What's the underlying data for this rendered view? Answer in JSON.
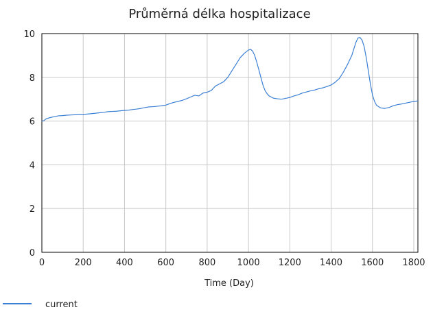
{
  "chart_data": {
    "type": "line",
    "title": "Průměrná délka hospitalizace",
    "xlabel": "Time (Day)",
    "ylabel": "",
    "xlim": [
      0,
      1820
    ],
    "ylim": [
      0,
      10
    ],
    "xticks": [
      0,
      200,
      400,
      600,
      800,
      1000,
      1200,
      1400,
      1600,
      1800
    ],
    "yticks": [
      0,
      2,
      4,
      6,
      8,
      10
    ],
    "grid": true,
    "legend_position": "bottom-left",
    "series": [
      {
        "name": "current",
        "color": "#3a7fd5",
        "x": [
          0,
          10,
          20,
          40,
          60,
          80,
          100,
          120,
          140,
          160,
          180,
          200,
          220,
          240,
          260,
          280,
          300,
          320,
          340,
          360,
          380,
          400,
          420,
          440,
          460,
          480,
          500,
          520,
          540,
          560,
          580,
          600,
          620,
          640,
          660,
          680,
          700,
          720,
          740,
          760,
          780,
          800,
          820,
          840,
          860,
          880,
          900,
          920,
          940,
          960,
          980,
          1000,
          1010,
          1020,
          1030,
          1040,
          1050,
          1060,
          1070,
          1080,
          1090,
          1100,
          1120,
          1140,
          1160,
          1180,
          1200,
          1220,
          1240,
          1260,
          1280,
          1300,
          1320,
          1340,
          1360,
          1380,
          1400,
          1420,
          1440,
          1460,
          1480,
          1500,
          1510,
          1520,
          1530,
          1540,
          1550,
          1560,
          1570,
          1580,
          1590,
          1600,
          1610,
          1620,
          1640,
          1660,
          1680,
          1700,
          1720,
          1740,
          1760,
          1780,
          1800,
          1820
        ],
        "y": [
          6.0,
          6.02,
          6.1,
          6.16,
          6.2,
          6.24,
          6.25,
          6.27,
          6.28,
          6.29,
          6.3,
          6.3,
          6.32,
          6.34,
          6.36,
          6.38,
          6.4,
          6.43,
          6.44,
          6.45,
          6.47,
          6.49,
          6.5,
          6.53,
          6.55,
          6.58,
          6.62,
          6.65,
          6.66,
          6.68,
          6.7,
          6.73,
          6.8,
          6.86,
          6.9,
          6.95,
          7.02,
          7.1,
          7.18,
          7.15,
          7.28,
          7.32,
          7.4,
          7.6,
          7.7,
          7.8,
          8.0,
          8.3,
          8.6,
          8.9,
          9.1,
          9.25,
          9.28,
          9.2,
          9.0,
          8.7,
          8.35,
          8.0,
          7.65,
          7.4,
          7.25,
          7.15,
          7.05,
          7.02,
          7.0,
          7.04,
          7.08,
          7.15,
          7.2,
          7.28,
          7.33,
          7.38,
          7.42,
          7.48,
          7.52,
          7.58,
          7.65,
          7.78,
          7.95,
          8.25,
          8.6,
          9.0,
          9.3,
          9.6,
          9.8,
          9.82,
          9.7,
          9.4,
          8.9,
          8.3,
          7.7,
          7.2,
          6.9,
          6.72,
          6.6,
          6.58,
          6.62,
          6.7,
          6.75,
          6.78,
          6.82,
          6.86,
          6.9,
          6.92
        ]
      }
    ]
  }
}
